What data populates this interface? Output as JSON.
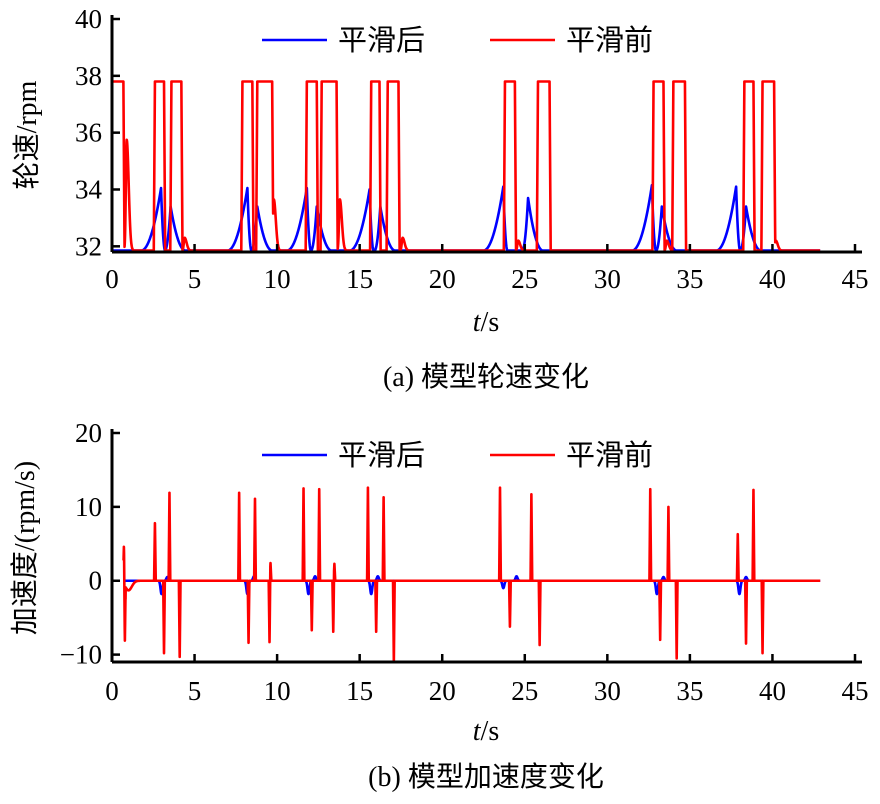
{
  "chart_data": [
    {
      "type": "line",
      "caption": "(a) 模型轮速变化",
      "xlabel_italic": "t",
      "xlabel_unit": "/s",
      "ylabel": "轮速/rpm",
      "xlim": [
        0,
        45
      ],
      "ylim": [
        31.8,
        40
      ],
      "xticks": [
        "0",
        "5",
        "10",
        "15",
        "20",
        "25",
        "30",
        "35",
        "40",
        "45"
      ],
      "yticks": [
        "32",
        "34",
        "36",
        "38",
        "40"
      ],
      "legend": [
        "平滑后",
        "平滑前"
      ],
      "legend_position": "top-center",
      "series": [
        {
          "name": "平滑前",
          "color": "#ff0000",
          "baseline": 31.85,
          "end": 42.9,
          "pulse_level": 37.8,
          "pulses": [
            [
              0,
              0.69
            ],
            [
              2.6,
              3.15
            ],
            [
              3.6,
              4.2
            ],
            [
              7.9,
              8.5
            ],
            [
              8.8,
              9.7
            ],
            [
              11.8,
              12.4
            ],
            [
              12.7,
              13.6
            ],
            [
              15.7,
              16.2
            ],
            [
              16.7,
              17.35
            ],
            [
              23.8,
              24.4
            ],
            [
              25.8,
              26.5
            ],
            [
              32.8,
              33.4
            ],
            [
              34.0,
              34.7
            ],
            [
              38.3,
              38.85
            ],
            [
              39.4,
              40.1
            ]
          ],
          "bumps": [
            [
              0.89,
              35.75
            ],
            [
              9.8,
              33.65
            ],
            [
              13.8,
              33.65
            ],
            [
              17.6,
              32.3
            ],
            [
              4.4,
              32.3
            ],
            [
              24.6,
              32.2
            ],
            [
              33.6,
              32.2
            ],
            [
              40.2,
              32.2
            ]
          ]
        },
        {
          "name": "平滑后",
          "color": "#0000ff",
          "baseline": 31.85,
          "end": 42.9,
          "peaks": [
            [
              2.97,
              34.05
            ],
            [
              3.55,
              33.4
            ],
            [
              8.2,
              34.05
            ],
            [
              8.8,
              33.4
            ],
            [
              11.8,
              34.05
            ],
            [
              12.4,
              33.4
            ],
            [
              15.6,
              34.0
            ],
            [
              16.25,
              33.4
            ],
            [
              23.7,
              34.1
            ],
            [
              25.2,
              33.7
            ],
            [
              32.7,
              34.15
            ],
            [
              33.3,
              33.4
            ],
            [
              37.8,
              34.1
            ],
            [
              38.4,
              33.4
            ]
          ]
        }
      ]
    },
    {
      "type": "line",
      "caption": "(b) 模型加速度变化",
      "xlabel_italic": "t",
      "xlabel_unit": "/s",
      "ylabel": "加速度/(rpm/s)",
      "xlim": [
        0,
        45
      ],
      "ylim": [
        -11,
        20
      ],
      "xticks": [
        "0",
        "5",
        "10",
        "15",
        "20",
        "25",
        "30",
        "35",
        "40",
        "45"
      ],
      "yticks": [
        "−10",
        "0",
        "10",
        "20"
      ],
      "legend": [
        "平滑后",
        "平滑前"
      ],
      "legend_position": "top-center",
      "series": [
        {
          "name": "平滑前",
          "color": "#ff0000",
          "start": 0.7,
          "end": 42.9,
          "spikes": [
            [
              0.72,
              4.6
            ],
            [
              0.78,
              -8.1
            ],
            [
              2.6,
              7.8
            ],
            [
              3.15,
              -9.8
            ],
            [
              3.48,
              11.9
            ],
            [
              4.1,
              -10.3
            ],
            [
              7.7,
              11.9
            ],
            [
              8.27,
              -8.4
            ],
            [
              8.66,
              11.1
            ],
            [
              9.54,
              -8.3
            ],
            [
              9.6,
              2.4
            ],
            [
              11.6,
              12.5
            ],
            [
              12.1,
              -6.7
            ],
            [
              12.55,
              12.4
            ],
            [
              13.4,
              -6.9
            ],
            [
              13.47,
              2.3
            ],
            [
              15.5,
              12.6
            ],
            [
              16.0,
              -6.9
            ],
            [
              16.45,
              11.3
            ],
            [
              17.07,
              -11
            ],
            [
              23.5,
              12.6
            ],
            [
              24.1,
              -6.2
            ],
            [
              25.4,
              11.7
            ],
            [
              25.9,
              -8.7
            ],
            [
              32.6,
              12.4
            ],
            [
              33.2,
              -8.0
            ],
            [
              33.7,
              10.0
            ],
            [
              34.2,
              -10.5
            ],
            [
              37.9,
              6.3
            ],
            [
              38.4,
              -8.5
            ],
            [
              38.85,
              12.3
            ],
            [
              39.4,
              -9.8
            ]
          ]
        },
        {
          "name": "平滑后",
          "color": "#0000ff",
          "start": 0.7,
          "end": 42.9,
          "wiggles": [
            [
              3.0,
              -1.8
            ],
            [
              3.35,
              0.5
            ],
            [
              8.2,
              -1.8
            ],
            [
              8.6,
              0.6
            ],
            [
              11.9,
              -1.8
            ],
            [
              12.3,
              0.6
            ],
            [
              15.7,
              -1.8
            ],
            [
              16.1,
              0.6
            ],
            [
              23.7,
              -1.0
            ],
            [
              24.5,
              0.6
            ],
            [
              33.0,
              -1.8
            ],
            [
              33.4,
              0.5
            ],
            [
              38.0,
              -1.8
            ],
            [
              38.4,
              0.5
            ]
          ]
        }
      ]
    }
  ]
}
